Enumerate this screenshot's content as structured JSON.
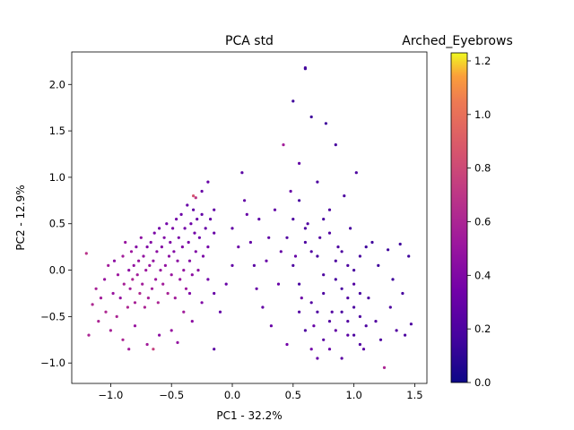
{
  "chart_data": {
    "type": "scatter",
    "title": "PCA std",
    "xlabel": "PC1 - 32.2%",
    "ylabel": "PC2 - 12.9%",
    "xlim": [
      -1.32,
      1.6
    ],
    "ylim": [
      -1.22,
      2.35
    ],
    "xticks": [
      -1.0,
      -0.5,
      0.0,
      0.5,
      1.0,
      1.5
    ],
    "xtick_labels": [
      "−1.0",
      "−0.5",
      "0.0",
      "0.5",
      "1.0",
      "1.5"
    ],
    "yticks": [
      -1.0,
      -0.5,
      0.0,
      0.5,
      1.0,
      1.5,
      2.0
    ],
    "ytick_labels": [
      "−1.0",
      "−0.5",
      "0.0",
      "0.5",
      "1.0",
      "1.5",
      "2.0"
    ],
    "grid": false,
    "colorbar": {
      "title": "Arched_Eyebrows",
      "colormap": "plasma",
      "range": [
        0.0,
        1.23
      ],
      "ticks": [
        0.0,
        0.2,
        0.4,
        0.6,
        0.8,
        1.0,
        1.2
      ],
      "tick_labels": [
        "0.0",
        "0.2",
        "0.4",
        "0.6",
        "0.8",
        "1.0",
        "1.2"
      ]
    },
    "series": [
      {
        "points": [
          [
            -1.2,
            0.18,
            0.68
          ],
          [
            -1.18,
            -0.7,
            0.6
          ],
          [
            -1.15,
            -0.37,
            0.62
          ],
          [
            -1.12,
            -0.2,
            0.58
          ],
          [
            -1.1,
            -0.55,
            0.6
          ],
          [
            -1.08,
            -0.3,
            0.55
          ],
          [
            -1.05,
            -0.1,
            0.5
          ],
          [
            -1.04,
            -0.45,
            0.62
          ],
          [
            -1.02,
            0.05,
            0.55
          ],
          [
            -1.0,
            -0.65,
            0.58
          ],
          [
            -0.98,
            -0.25,
            0.5
          ],
          [
            -0.97,
            0.1,
            0.45
          ],
          [
            -0.95,
            -0.5,
            0.6
          ],
          [
            -0.94,
            -0.05,
            0.52
          ],
          [
            -0.92,
            -0.3,
            0.48
          ],
          [
            -0.9,
            0.15,
            0.55
          ],
          [
            -0.89,
            -0.15,
            0.58
          ],
          [
            -0.88,
            0.3,
            0.5
          ],
          [
            -0.86,
            -0.4,
            0.62
          ],
          [
            -0.85,
            0.0,
            0.45
          ],
          [
            -0.84,
            -0.2,
            0.55
          ],
          [
            -0.83,
            0.2,
            0.52
          ],
          [
            -0.82,
            -0.1,
            0.6
          ],
          [
            -0.81,
            0.05,
            0.48
          ],
          [
            -0.8,
            -0.35,
            0.58
          ],
          [
            -0.79,
            0.25,
            0.42
          ],
          [
            -0.78,
            -0.05,
            0.55
          ],
          [
            -0.77,
            0.1,
            0.5
          ],
          [
            -0.76,
            -0.25,
            0.62
          ],
          [
            -0.75,
            0.35,
            0.45
          ],
          [
            -0.74,
            -0.15,
            0.55
          ],
          [
            -0.73,
            0.15,
            0.48
          ],
          [
            -0.72,
            -0.4,
            0.6
          ],
          [
            -0.71,
            0.0,
            0.52
          ],
          [
            -0.7,
            0.25,
            0.4
          ],
          [
            -0.69,
            -0.3,
            0.58
          ],
          [
            -0.68,
            0.05,
            0.5
          ],
          [
            -0.67,
            0.3,
            0.42
          ],
          [
            -0.66,
            -0.2,
            0.55
          ],
          [
            -0.65,
            0.1,
            0.48
          ],
          [
            -0.64,
            0.4,
            0.38
          ],
          [
            -0.63,
            -0.1,
            0.52
          ],
          [
            -0.62,
            0.2,
            0.45
          ],
          [
            -0.61,
            -0.35,
            0.6
          ],
          [
            -0.6,
            0.45,
            0.35
          ],
          [
            -0.59,
            0.0,
            0.5
          ],
          [
            -0.58,
            0.25,
            0.42
          ],
          [
            -0.57,
            -0.15,
            0.55
          ],
          [
            -0.56,
            0.35,
            0.4
          ],
          [
            -0.55,
            0.05,
            0.48
          ],
          [
            -0.54,
            0.5,
            0.35
          ],
          [
            -0.53,
            -0.25,
            0.58
          ],
          [
            -0.52,
            0.15,
            0.45
          ],
          [
            -0.51,
            0.3,
            0.4
          ],
          [
            -0.5,
            -0.05,
            0.5
          ],
          [
            -0.49,
            0.45,
            0.38
          ],
          [
            -0.48,
            0.2,
            0.42
          ],
          [
            -0.47,
            -0.3,
            0.55
          ],
          [
            -0.46,
            0.55,
            0.35
          ],
          [
            -0.45,
            0.1,
            0.45
          ],
          [
            -0.44,
            0.35,
            0.38
          ],
          [
            -0.43,
            -0.1,
            0.5
          ],
          [
            -0.42,
            0.6,
            0.32
          ],
          [
            -0.41,
            0.25,
            0.4
          ],
          [
            -0.4,
            0.0,
            0.48
          ],
          [
            -0.39,
            0.45,
            0.35
          ],
          [
            -0.38,
            -0.2,
            0.52
          ],
          [
            -0.37,
            0.7,
            0.3
          ],
          [
            -0.36,
            0.3,
            0.38
          ],
          [
            -0.35,
            0.1,
            0.42
          ],
          [
            -0.34,
            0.5,
            0.32
          ],
          [
            -0.33,
            -0.05,
            0.45
          ],
          [
            -0.32,
            0.65,
            0.28
          ],
          [
            -0.31,
            0.4,
            0.35
          ],
          [
            -0.3,
            0.2,
            0.4
          ],
          [
            -0.29,
            0.55,
            0.3
          ],
          [
            -0.28,
            0.0,
            0.45
          ],
          [
            -0.27,
            0.35,
            0.32
          ],
          [
            -0.25,
            0.6,
            0.28
          ],
          [
            -0.24,
            0.15,
            0.38
          ],
          [
            -0.22,
            0.45,
            0.3
          ],
          [
            -0.2,
            0.25,
            0.35
          ],
          [
            -0.18,
            0.55,
            0.28
          ],
          [
            -0.15,
            0.4,
            0.3
          ],
          [
            -0.32,
            0.8,
            0.85
          ],
          [
            -0.3,
            0.78,
            0.7
          ],
          [
            -0.33,
            -0.55,
            0.45
          ],
          [
            -0.25,
            -0.35,
            0.4
          ],
          [
            -0.4,
            -0.45,
            0.55
          ],
          [
            -0.5,
            -0.65,
            0.5
          ],
          [
            -0.6,
            -0.7,
            0.45
          ],
          [
            -0.7,
            -0.8,
            0.55
          ],
          [
            -0.8,
            -0.6,
            0.5
          ],
          [
            -0.9,
            -0.75,
            0.6
          ],
          [
            -0.85,
            -0.85,
            0.55
          ],
          [
            -0.65,
            -0.85,
            0.75
          ],
          [
            -0.45,
            -0.78,
            0.48
          ],
          [
            -0.35,
            -0.25,
            0.4
          ],
          [
            -0.2,
            -0.1,
            0.35
          ],
          [
            -0.15,
            -0.25,
            0.3
          ],
          [
            -0.1,
            -0.45,
            0.28
          ],
          [
            -0.15,
            -0.85,
            0.25
          ],
          [
            -0.05,
            -0.15,
            0.3
          ],
          [
            0.0,
            0.05,
            0.28
          ],
          [
            -0.2,
            0.95,
            0.3
          ],
          [
            -0.15,
            0.65,
            0.28
          ],
          [
            -0.25,
            0.85,
            0.3
          ],
          [
            0.0,
            0.45,
            0.28
          ],
          [
            0.05,
            0.25,
            0.32
          ],
          [
            0.08,
            1.05,
            0.25
          ],
          [
            0.1,
            0.75,
            0.28
          ],
          [
            0.12,
            0.6,
            0.3
          ],
          [
            0.15,
            0.3,
            0.28
          ],
          [
            0.18,
            0.05,
            0.25
          ],
          [
            0.2,
            -0.2,
            0.3
          ],
          [
            0.22,
            0.55,
            0.26
          ],
          [
            0.25,
            -0.4,
            0.28
          ],
          [
            0.28,
            0.1,
            0.3
          ],
          [
            0.3,
            0.35,
            0.27
          ],
          [
            0.32,
            -0.6,
            0.3
          ],
          [
            0.35,
            0.65,
            0.28
          ],
          [
            0.38,
            -0.15,
            0.3
          ],
          [
            0.4,
            0.2,
            0.29
          ],
          [
            0.42,
            1.35,
            0.55
          ],
          [
            0.45,
            -0.8,
            0.35
          ],
          [
            0.48,
            0.85,
            0.3
          ],
          [
            0.5,
            1.82,
            0.15
          ],
          [
            0.52,
            0.15,
            0.3
          ],
          [
            0.55,
            1.15,
            0.28
          ],
          [
            0.57,
            -0.3,
            0.32
          ],
          [
            0.6,
            2.18,
            0.2
          ],
          [
            0.6,
            2.17,
            0.15
          ],
          [
            0.62,
            0.5,
            0.22
          ],
          [
            0.65,
            1.65,
            0.15
          ],
          [
            0.67,
            -0.6,
            0.3
          ],
          [
            0.7,
            0.95,
            0.2
          ],
          [
            0.72,
            0.35,
            0.22
          ],
          [
            0.75,
            -0.05,
            0.2
          ],
          [
            0.77,
            1.58,
            0.15
          ],
          [
            0.8,
            0.65,
            0.2
          ],
          [
            0.82,
            -0.45,
            0.22
          ],
          [
            0.85,
            1.35,
            0.18
          ],
          [
            0.87,
            0.25,
            0.2
          ],
          [
            0.9,
            -0.2,
            0.18
          ],
          [
            0.92,
            0.8,
            0.2
          ],
          [
            0.95,
            -0.7,
            0.25
          ],
          [
            0.97,
            0.45,
            0.18
          ],
          [
            1.0,
            -0.4,
            0.2
          ],
          [
            1.02,
            1.05,
            0.2
          ],
          [
            1.05,
            0.15,
            0.18
          ],
          [
            1.08,
            -0.85,
            0.25
          ],
          [
            1.1,
            0.25,
            0.15
          ],
          [
            1.12,
            -0.3,
            0.2
          ],
          [
            1.15,
            0.3,
            0.15
          ],
          [
            1.18,
            -0.55,
            0.22
          ],
          [
            1.2,
            0.05,
            0.15
          ],
          [
            1.22,
            -0.75,
            0.2
          ],
          [
            1.25,
            -1.05,
            0.6
          ],
          [
            1.28,
            0.22,
            0.15
          ],
          [
            1.3,
            -0.4,
            0.2
          ],
          [
            1.32,
            -0.1,
            0.15
          ],
          [
            1.35,
            -0.65,
            0.22
          ],
          [
            1.38,
            0.28,
            0.15
          ],
          [
            1.4,
            -0.25,
            0.18
          ],
          [
            1.42,
            -0.7,
            0.2
          ],
          [
            1.45,
            0.15,
            0.15
          ],
          [
            1.47,
            -0.58,
            0.2
          ],
          [
            0.45,
            0.35,
            0.22
          ],
          [
            0.5,
            0.05,
            0.2
          ],
          [
            0.55,
            -0.15,
            0.18
          ],
          [
            0.6,
            0.3,
            0.2
          ],
          [
            0.65,
            -0.35,
            0.22
          ],
          [
            0.7,
            0.15,
            0.18
          ],
          [
            0.75,
            -0.25,
            0.2
          ],
          [
            0.8,
            0.4,
            0.22
          ],
          [
            0.85,
            -0.1,
            0.18
          ],
          [
            0.9,
            0.2,
            0.2
          ],
          [
            0.95,
            -0.3,
            0.22
          ],
          [
            1.0,
            0.0,
            0.18
          ],
          [
            1.05,
            -0.5,
            0.2
          ],
          [
            0.5,
            0.55,
            0.2
          ],
          [
            0.55,
            0.75,
            0.18
          ],
          [
            0.6,
            0.45,
            0.2
          ],
          [
            0.65,
            0.2,
            0.22
          ],
          [
            0.7,
            -0.45,
            0.2
          ],
          [
            0.75,
            0.55,
            0.18
          ],
          [
            0.8,
            -0.55,
            0.22
          ],
          [
            0.85,
            0.1,
            0.2
          ],
          [
            0.9,
            -0.45,
            0.18
          ],
          [
            0.95,
            0.05,
            0.2
          ],
          [
            1.0,
            -0.15,
            0.22
          ],
          [
            1.05,
            -0.25,
            0.18
          ],
          [
            0.55,
            -0.45,
            0.22
          ],
          [
            0.6,
            -0.65,
            0.2
          ],
          [
            0.65,
            -0.85,
            0.35
          ],
          [
            0.7,
            -0.95,
            0.3
          ],
          [
            0.75,
            -0.75,
            0.25
          ],
          [
            0.8,
            -0.85,
            0.3
          ],
          [
            0.85,
            -0.65,
            0.28
          ],
          [
            0.9,
            -0.95,
            0.25
          ],
          [
            0.95,
            -0.55,
            0.22
          ],
          [
            1.0,
            -0.7,
            0.2
          ],
          [
            1.05,
            -0.8,
            0.22
          ],
          [
            1.1,
            -0.6,
            0.2
          ]
        ]
      }
    ]
  }
}
